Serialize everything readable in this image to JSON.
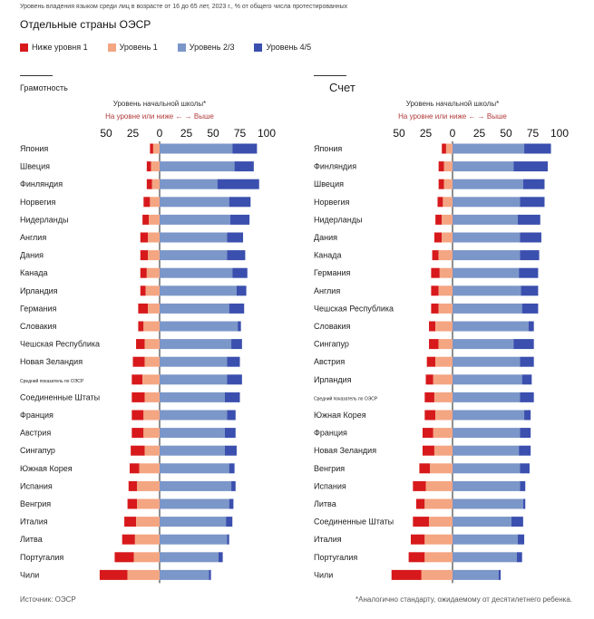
{
  "header": {
    "subtitle": "Уровень владения языком среди лиц в возрасте от 16 до 65 лет, 2023 г., % от общего числа протестированных",
    "title": "Отдельные страны ОЭСР"
  },
  "legend": [
    {
      "label": "Ниже уровня 1",
      "color": "#d7191c"
    },
    {
      "label": "Уровень 1",
      "color": "#f4a582"
    },
    {
      "label": "Уровень 2/3",
      "color": "#7b96c8"
    },
    {
      "label": "Уровень 4/5",
      "color": "#3a4fae"
    }
  ],
  "footer": {
    "source": "Источник: ОЭСР",
    "note": "*Аналогично стандарту, ожидаемому от десятилетнего ребенка."
  },
  "chart_data": [
    {
      "type": "bar",
      "title": "Грамотность",
      "axis_title": "Уровень начальной школы*",
      "axis_subtitle": "На уровне или ниже ← → Выше",
      "tick_labels": [
        "50",
        "25",
        "0",
        "25",
        "50",
        "75",
        "100"
      ],
      "xlim": [
        -50,
        100
      ],
      "categories": [
        "Япония",
        "Швеция",
        "Финляндия",
        "Норвегия",
        "Нидерланды",
        "Англия",
        "Дания",
        "Канада",
        "Ирландия",
        "Германия",
        "Словакия",
        "Чешская Республика",
        "Новая Зеландия",
        "Средний показатель по ОЭСР",
        "Соединенные Штаты",
        "Франция",
        "Австрия",
        "Сингапур",
        "Южная Корея",
        "Испания",
        "Венгрия",
        "Италия",
        "Литва",
        "Португалия",
        "Чили"
      ],
      "series": [
        {
          "name": "Ниже уровня 1",
          "values": [
            3,
            4,
            5,
            6,
            6,
            7,
            7,
            6,
            5,
            9,
            5,
            8,
            11,
            10,
            12,
            11,
            11,
            13,
            9,
            8,
            9,
            11,
            12,
            18,
            26
          ]
        },
        {
          "name": "Уровень 1",
          "values": [
            6,
            8,
            7,
            9,
            10,
            11,
            11,
            12,
            13,
            11,
            15,
            14,
            14,
            16,
            14,
            15,
            15,
            14,
            19,
            21,
            21,
            22,
            23,
            24,
            30
          ]
        },
        {
          "name": "Уровень 2/3",
          "values": [
            68,
            70,
            54,
            65,
            66,
            63,
            63,
            68,
            72,
            65,
            73,
            67,
            63,
            63,
            61,
            63,
            61,
            61,
            65,
            67,
            65,
            62,
            63,
            55,
            46
          ]
        },
        {
          "name": "Уровень 4/5",
          "values": [
            23,
            18,
            39,
            20,
            18,
            15,
            17,
            14,
            9,
            14,
            3,
            10,
            12,
            14,
            14,
            8,
            10,
            11,
            5,
            4,
            4,
            6,
            2,
            4,
            2
          ]
        }
      ]
    },
    {
      "type": "bar",
      "title": "Счет",
      "axis_title": "Уровень начальной школы*",
      "axis_subtitle": "На уровне или ниже ← → Выше",
      "tick_labels": [
        "50",
        "25",
        "0",
        "25",
        "50",
        "75",
        "100"
      ],
      "xlim": [
        -50,
        100
      ],
      "categories": [
        "Япония",
        "Финляндия",
        "Швеция",
        "Норвегия",
        "Нидерланды",
        "Дания",
        "Канада",
        "Германия",
        "Англия",
        "Чешская Республика",
        "Словакия",
        "Сингапур",
        "Австрия",
        "Ирландия",
        "Средний показатель по ОЭСР",
        "Южная Корея",
        "Франция",
        "Новая Зеландия",
        "Венгрия",
        "Испания",
        "Литва",
        "Соединенные Штаты",
        "Италия",
        "Португалия",
        "Чили"
      ],
      "series": [
        {
          "name": "Ниже уровня 1",
          "values": [
            4,
            5,
            5,
            5,
            6,
            7,
            6,
            8,
            7,
            7,
            6,
            9,
            8,
            7,
            9,
            10,
            10,
            11,
            10,
            12,
            8,
            15,
            13,
            15,
            28
          ]
        },
        {
          "name": "Уровень 1",
          "values": [
            6,
            8,
            8,
            9,
            10,
            10,
            13,
            12,
            13,
            13,
            16,
            13,
            16,
            18,
            17,
            16,
            18,
            17,
            21,
            25,
            26,
            22,
            26,
            26,
            29
          ]
        },
        {
          "name": "Уровень 2/3",
          "values": [
            67,
            57,
            66,
            63,
            61,
            63,
            63,
            62,
            64,
            65,
            71,
            57,
            63,
            65,
            63,
            67,
            63,
            62,
            63,
            63,
            66,
            55,
            61,
            60,
            43
          ]
        },
        {
          "name": "Уровень 4/5",
          "values": [
            25,
            32,
            20,
            23,
            21,
            20,
            18,
            18,
            16,
            15,
            5,
            19,
            13,
            9,
            13,
            6,
            10,
            11,
            9,
            5,
            2,
            11,
            6,
            5,
            2
          ]
        }
      ]
    }
  ]
}
